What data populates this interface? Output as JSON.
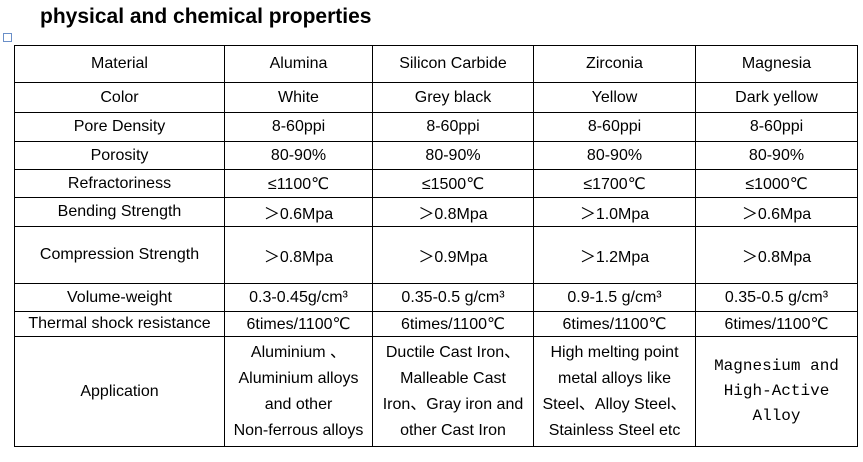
{
  "header": {
    "title": "physical and chemical properties"
  },
  "table": {
    "rows": [
      [
        "Material",
        "Alumina",
        "Silicon Carbide",
        "Zirconia",
        "Magnesia"
      ],
      [
        "Color",
        "White",
        "Grey black",
        "Yellow",
        "Dark yellow"
      ],
      [
        "Pore Density",
        "8-60ppi",
        "8-60ppi",
        "8-60ppi",
        "8-60ppi"
      ],
      [
        "Porosity",
        "80-90%",
        "80-90%",
        "80-90%",
        "80-90%"
      ],
      [
        "Refractoriness",
        "≤1100℃",
        "≤1500℃",
        "≤1700℃",
        "≤1000℃"
      ],
      [
        "Bending Strength",
        "＞0.6Mpa",
        "＞0.8Mpa",
        "＞1.0Mpa",
        "＞0.6Mpa"
      ],
      [
        "Compression Strength",
        "＞0.8Mpa",
        "＞0.9Mpa",
        "＞1.2Mpa",
        "＞0.8Mpa"
      ],
      [
        "Volume-weight",
        "0.3-0.45g/cm³",
        "0.35-0.5 g/cm³",
        "0.9-1.5 g/cm³",
        "0.35-0.5 g/cm³"
      ],
      [
        "Thermal shock resistance",
        "6times/1100℃",
        "6times/1100℃",
        "6times/1100℃",
        "6times/1100℃"
      ],
      [
        "Application",
        [
          "Aluminium 、",
          "Aluminium alloys",
          "and other",
          "Non-ferrous alloys"
        ],
        [
          "Ductile Cast Iron、",
          "Malleable Cast",
          "Iron、Gray iron and",
          "other Cast Iron"
        ],
        [
          "High melting point",
          "metal alloys like",
          "Steel、Alloy Steel、",
          "Stainless Steel etc"
        ],
        [
          "Magnesium and",
          "High-Active",
          "Alloy"
        ]
      ]
    ]
  }
}
